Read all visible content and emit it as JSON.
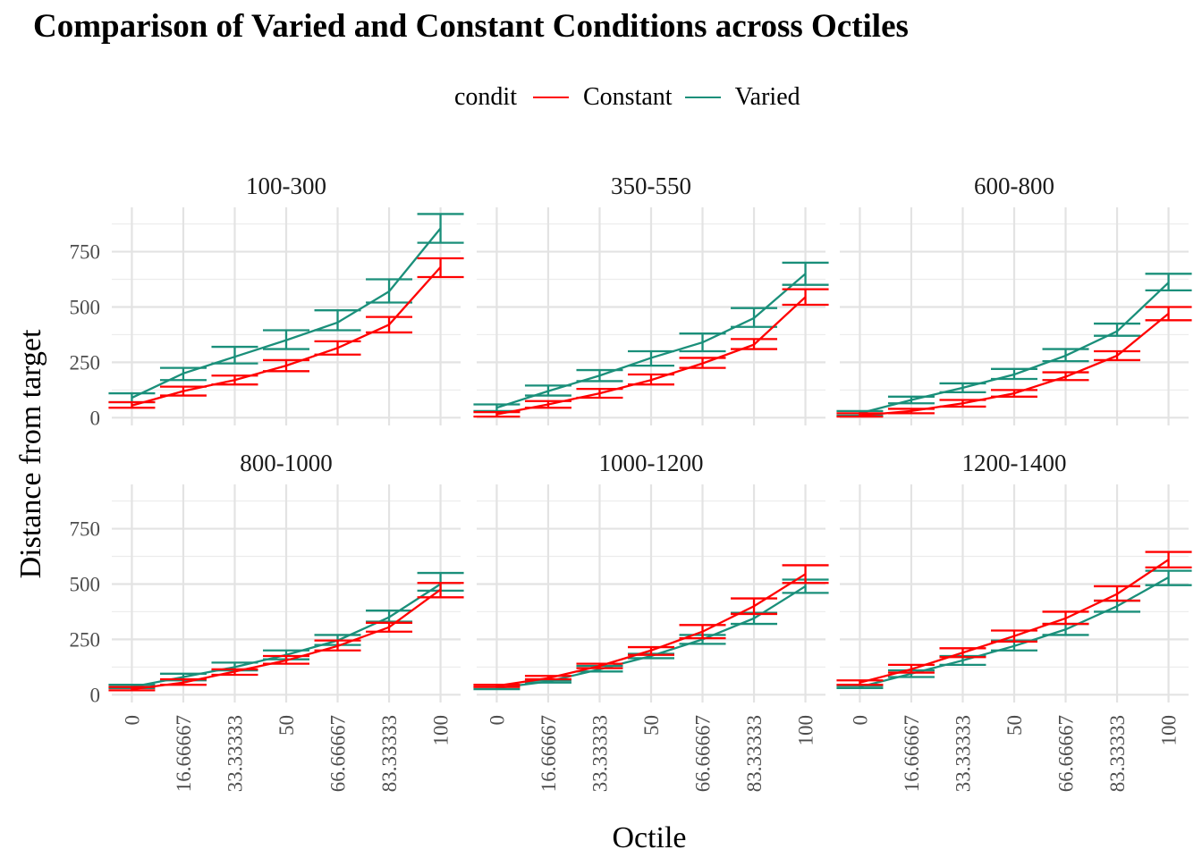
{
  "chart_data": {
    "type": "line",
    "title": "Comparison of Varied and Constant Conditions across Octiles",
    "xlabel": "Octile",
    "ylabel": "Distance from target",
    "x": [
      0,
      16.66667,
      33.33333,
      50,
      66.66667,
      83.33333,
      100
    ],
    "x_tick_labels": [
      "0",
      "16.66667",
      "33.33333",
      "50",
      "66.66667",
      "83.33333",
      "100"
    ],
    "y_ticks": [
      0,
      250,
      500,
      750
    ],
    "y_tick_labels": [
      "0",
      "250",
      "500",
      "750"
    ],
    "ylim": [
      -35,
      950
    ],
    "grid": true,
    "legend": {
      "title": "condit",
      "position": "top",
      "entries": [
        {
          "name": "Constant",
          "color": "#ff0000"
        },
        {
          "name": "Varied",
          "color": "#1a8f7a"
        }
      ]
    },
    "error_bars": true,
    "panels": [
      {
        "label": "100-300",
        "series": [
          {
            "name": "Constant",
            "values": [
              55,
              120,
              170,
              235,
              315,
              420,
              680
            ],
            "lower": [
              45,
              100,
              150,
              210,
              285,
              385,
              635
            ],
            "upper": [
              70,
              140,
              190,
              260,
              345,
              455,
              720
            ]
          },
          {
            "name": "Varied",
            "values": [
              90,
              200,
              275,
              350,
              430,
              570,
              855
            ],
            "lower": [
              70,
              170,
              245,
              310,
              395,
              520,
              790
            ],
            "upper": [
              110,
              225,
              320,
              395,
              485,
              625,
              920
            ]
          }
        ]
      },
      {
        "label": "350-550",
        "series": [
          {
            "name": "Constant",
            "values": [
              15,
              60,
              110,
              170,
              245,
              330,
              545
            ],
            "lower": [
              5,
              45,
              90,
              150,
              225,
              310,
              510
            ],
            "upper": [
              25,
              75,
              130,
              195,
              270,
              355,
              580
            ]
          },
          {
            "name": "Varied",
            "values": [
              45,
              120,
              190,
              270,
              340,
              450,
              650
            ],
            "lower": [
              30,
              100,
              165,
              235,
              300,
              410,
              600
            ],
            "upper": [
              60,
              145,
              215,
              300,
              380,
              495,
              700
            ]
          }
        ]
      },
      {
        "label": "600-800",
        "series": [
          {
            "name": "Constant",
            "values": [
              10,
              30,
              65,
              110,
              185,
              280,
              470
            ],
            "lower": [
              5,
              20,
              50,
              95,
              170,
              260,
              440
            ],
            "upper": [
              20,
              40,
              80,
              125,
              205,
              300,
              500
            ]
          },
          {
            "name": "Varied",
            "values": [
              20,
              80,
              135,
              195,
              280,
              390,
              610
            ],
            "lower": [
              10,
              65,
              115,
              175,
              255,
              370,
              575
            ],
            "upper": [
              30,
              95,
              155,
              220,
              310,
              425,
              650
            ]
          }
        ]
      },
      {
        "label": "800-1000",
        "series": [
          {
            "name": "Constant",
            "values": [
              25,
              55,
              105,
              155,
              220,
              305,
              475
            ],
            "lower": [
              20,
              45,
              90,
              140,
              200,
              285,
              440
            ],
            "upper": [
              35,
              70,
              115,
              175,
              245,
              325,
              505
            ]
          },
          {
            "name": "Varied",
            "values": [
              35,
              80,
              125,
              180,
              245,
              350,
              500
            ],
            "lower": [
              30,
              65,
              110,
              160,
              225,
              330,
              470
            ],
            "upper": [
              45,
              95,
              145,
              200,
              270,
              380,
              550
            ]
          }
        ]
      },
      {
        "label": "1000-1200",
        "series": [
          {
            "name": "Constant",
            "values": [
              40,
              75,
              130,
              200,
              285,
              400,
              545
            ],
            "lower": [
              35,
              70,
              120,
              180,
              255,
              365,
              505
            ],
            "upper": [
              45,
              85,
              140,
              215,
              315,
              435,
              585
            ]
          },
          {
            "name": "Varied",
            "values": [
              30,
              60,
              115,
              175,
              250,
              345,
              490
            ],
            "lower": [
              25,
              55,
              105,
              165,
              230,
              320,
              460
            ],
            "upper": [
              35,
              65,
              130,
              185,
              270,
              370,
              520
            ]
          }
        ]
      },
      {
        "label": "1200-1400",
        "series": [
          {
            "name": "Constant",
            "values": [
              55,
              115,
              190,
              265,
              345,
              455,
              610
            ],
            "lower": [
              45,
              100,
              170,
              240,
              320,
              425,
              575
            ],
            "upper": [
              65,
              135,
              210,
              290,
              375,
              490,
              645
            ]
          },
          {
            "name": "Varied",
            "values": [
              35,
              95,
              155,
              220,
              295,
              400,
              530
            ],
            "lower": [
              30,
              80,
              135,
              200,
              270,
              375,
              495
            ],
            "upper": [
              40,
              110,
              175,
              245,
              320,
              425,
              560
            ]
          }
        ]
      }
    ]
  }
}
